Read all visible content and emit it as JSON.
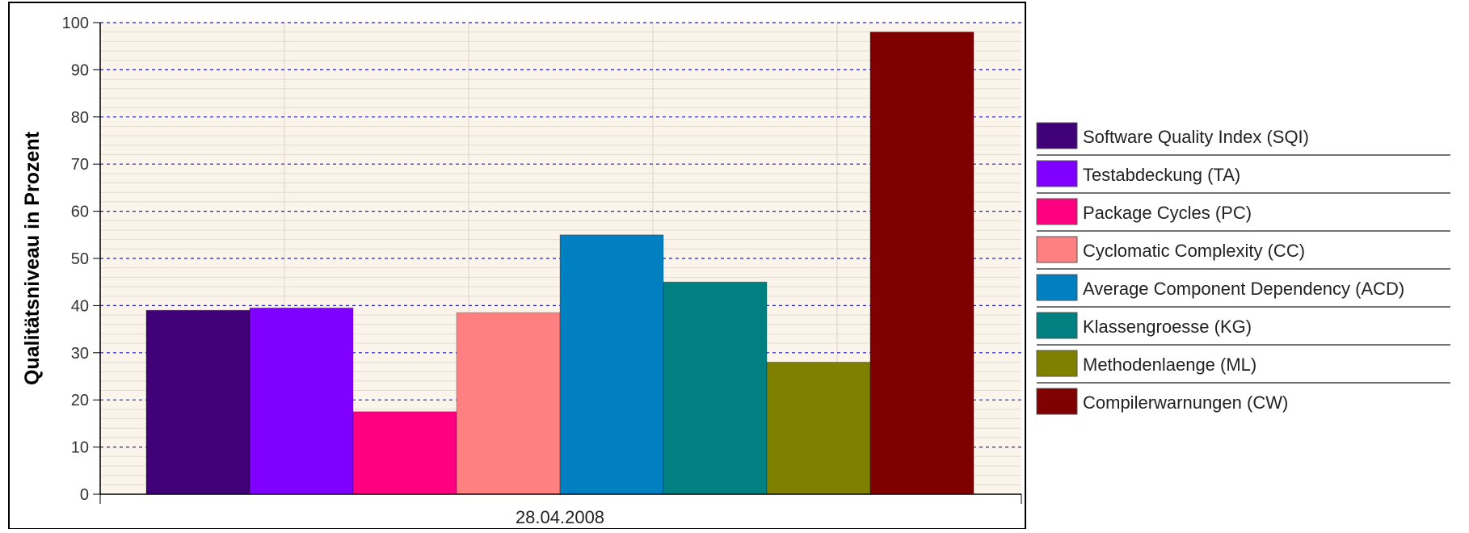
{
  "chart_data": {
    "type": "bar",
    "categories": [
      "28.04.2008"
    ],
    "ylabel": "Qualitätsniveau in Prozent",
    "xlabel": "",
    "ylim": [
      0,
      100
    ],
    "yticks": [
      0,
      10,
      20,
      30,
      40,
      50,
      60,
      70,
      80,
      90,
      100
    ],
    "grid": true,
    "legend_position": "right",
    "series": [
      {
        "name": "Software Quality Index (SQI)",
        "values": [
          39
        ],
        "color": "#400077"
      },
      {
        "name": "Testabdeckung (TA)",
        "values": [
          39.5
        ],
        "color": "#8000ff"
      },
      {
        "name": "Package Cycles (PC)",
        "values": [
          17.5
        ],
        "color": "#ff0080"
      },
      {
        "name": "Cyclomatic Complexity (CC)",
        "values": [
          38.5
        ],
        "color": "#ff8080"
      },
      {
        "name": "Average Component Dependency (ACD)",
        "values": [
          55
        ],
        "color": "#0080c0"
      },
      {
        "name": "Klassengroesse (KG)",
        "values": [
          45
        ],
        "color": "#008080"
      },
      {
        "name": "Methodenlaenge (ML)",
        "values": [
          28
        ],
        "color": "#808000"
      },
      {
        "name": "Compilerwarnungen (CW)",
        "values": [
          98
        ],
        "color": "#800000"
      }
    ]
  }
}
